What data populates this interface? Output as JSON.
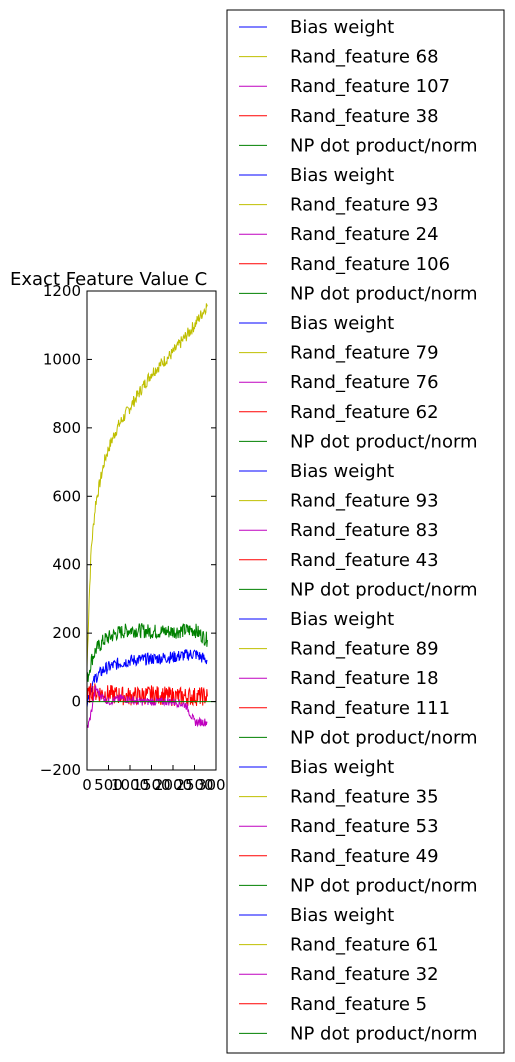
{
  "chart_data": {
    "type": "line",
    "title": "Exact Feature Value C",
    "xlabel": "",
    "ylabel": "",
    "xlim": [
      0,
      3000
    ],
    "ylim": [
      -200,
      1200
    ],
    "x_ticks": [
      "0",
      "500",
      "1000",
      "1500",
      "2000",
      "2500",
      "3000"
    ],
    "y_ticks": [
      "−200",
      "0",
      "200",
      "400",
      "600",
      "800",
      "1000",
      "1200"
    ],
    "grid": false,
    "legend_placement": "right",
    "colors": {
      "blue": "#0000ff",
      "yellow": "#bfbf00",
      "magenta": "#bf00bf",
      "red": "#ff0000",
      "green": "#008000"
    },
    "legend": [
      {
        "name": "Bias weight",
        "color": "#0000ff"
      },
      {
        "name": "Rand_feature 68",
        "color": "#bfbf00"
      },
      {
        "name": "Rand_feature 107",
        "color": "#bf00bf"
      },
      {
        "name": "Rand_feature 38",
        "color": "#ff0000"
      },
      {
        "name": "NP dot product/norm",
        "color": "#008000"
      },
      {
        "name": "Bias weight",
        "color": "#0000ff"
      },
      {
        "name": "Rand_feature 93",
        "color": "#bfbf00"
      },
      {
        "name": "Rand_feature 24",
        "color": "#bf00bf"
      },
      {
        "name": "Rand_feature 106",
        "color": "#ff0000"
      },
      {
        "name": "NP dot product/norm",
        "color": "#008000"
      },
      {
        "name": "Bias weight",
        "color": "#0000ff"
      },
      {
        "name": "Rand_feature 79",
        "color": "#bfbf00"
      },
      {
        "name": "Rand_feature 76",
        "color": "#bf00bf"
      },
      {
        "name": "Rand_feature 62",
        "color": "#ff0000"
      },
      {
        "name": "NP dot product/norm",
        "color": "#008000"
      },
      {
        "name": "Bias weight",
        "color": "#0000ff"
      },
      {
        "name": "Rand_feature 93",
        "color": "#bfbf00"
      },
      {
        "name": "Rand_feature 83",
        "color": "#bf00bf"
      },
      {
        "name": "Rand_feature 43",
        "color": "#ff0000"
      },
      {
        "name": "NP dot product/norm",
        "color": "#008000"
      },
      {
        "name": "Bias weight",
        "color": "#0000ff"
      },
      {
        "name": "Rand_feature 89",
        "color": "#bfbf00"
      },
      {
        "name": "Rand_feature 18",
        "color": "#bf00bf"
      },
      {
        "name": "Rand_feature 111",
        "color": "#ff0000"
      },
      {
        "name": "NP dot product/norm",
        "color": "#008000"
      },
      {
        "name": "Bias weight",
        "color": "#0000ff"
      },
      {
        "name": "Rand_feature 35",
        "color": "#bfbf00"
      },
      {
        "name": "Rand_feature 53",
        "color": "#bf00bf"
      },
      {
        "name": "Rand_feature 49",
        "color": "#ff0000"
      },
      {
        "name": "NP dot product/norm",
        "color": "#008000"
      },
      {
        "name": "Bias weight",
        "color": "#0000ff"
      },
      {
        "name": "Rand_feature 61",
        "color": "#bfbf00"
      },
      {
        "name": "Rand_feature 32",
        "color": "#bf00bf"
      },
      {
        "name": "Rand_feature 5",
        "color": "#ff0000"
      },
      {
        "name": "NP dot product/norm",
        "color": "#008000"
      }
    ],
    "plotted_series": [
      {
        "color": "#bfbf00",
        "x": [
          0,
          50,
          100,
          200,
          300,
          400,
          500,
          700,
          1000,
          1500,
          2000,
          2500,
          2800
        ],
        "y": [
          100,
          300,
          450,
          580,
          640,
          700,
          740,
          800,
          860,
          960,
          1020,
          1100,
          1160
        ]
      },
      {
        "color": "#008000",
        "x": [
          0,
          100,
          200,
          400,
          700,
          1000,
          1500,
          2000,
          2500,
          2800
        ],
        "y": [
          60,
          120,
          150,
          180,
          200,
          210,
          205,
          205,
          210,
          180
        ]
      },
      {
        "color": "#0000ff",
        "x": [
          0,
          100,
          200,
          400,
          700,
          1000,
          1500,
          2000,
          2500,
          2800
        ],
        "y": [
          0,
          40,
          70,
          95,
          110,
          120,
          125,
          130,
          140,
          120
        ]
      },
      {
        "color": "#ff0000",
        "x": [
          0,
          100,
          300,
          600,
          1000,
          1500,
          2000,
          2500,
          2800
        ],
        "y": [
          10,
          30,
          25,
          20,
          15,
          20,
          15,
          15,
          15
        ]
      },
      {
        "color": "#bf00bf",
        "x": [
          0,
          50,
          100,
          200,
          300,
          500,
          800,
          1200,
          1600,
          2000,
          2300,
          2500,
          2800
        ],
        "y": [
          -80,
          -60,
          -30,
          40,
          20,
          0,
          10,
          0,
          0,
          0,
          -10,
          -60,
          -60
        ]
      }
    ]
  }
}
